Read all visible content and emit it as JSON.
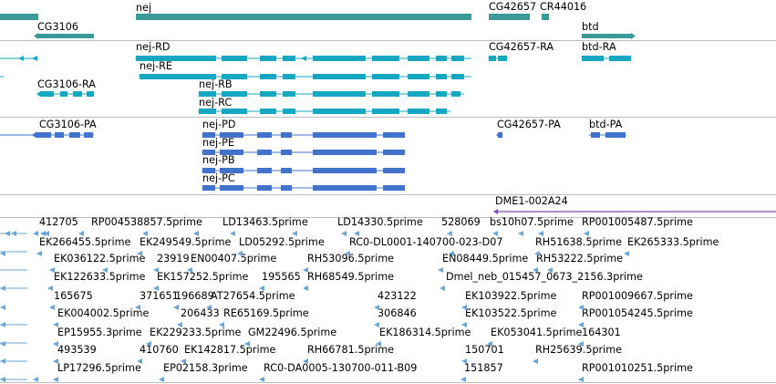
{
  "colors": {
    "gene": "#3a9999",
    "mrna": "#16a8c3",
    "cds": "#4273cc",
    "est": "#6aa5d6",
    "repeat": "#7a4cb0",
    "separator": "#bdbdbd"
  },
  "tracks": {
    "genes": {
      "labels": [
        "nej",
        "CG3106",
        "CG42657",
        "CR44016",
        "btd"
      ]
    },
    "transcripts": {
      "labels": [
        "nej-RD",
        "nej-RE",
        "nej-RB",
        "nej-RC",
        "CG3106-RA",
        "CG42657-RA",
        "btd-RA"
      ]
    },
    "cds": {
      "labels": [
        "CG3106-PA",
        "nej-PD",
        "nej-PE",
        "nej-PB",
        "nej-PC",
        "CG42657-PA",
        "btd-PA"
      ]
    },
    "repeats": {
      "labels": [
        "DME1-002A24"
      ]
    },
    "ests": {
      "labels": [
        "412705",
        "RP004538857.5prime",
        "LD13463.5prime",
        "LD14330.5prime",
        "528069",
        "bs10h07.5prime",
        "RP001005487.5prime",
        "EK266455.5prime",
        "EK249549.5prime",
        "LD05292.5prime",
        "RC0-DL0001-140700-023-D07",
        "RH51638.5prime",
        "EK265333.5prime",
        "EK036122.5prime",
        "23919",
        "EN00407.5prime",
        "RH53096.5prime",
        "EN08449.5prime",
        "RH53222.5prime",
        "EK122633.5prime",
        "EK157252.5prime",
        "195565",
        "RH68549.5prime",
        "Dmel_neb_015457_0673_2156.3prime",
        "165675",
        "371651",
        "196689",
        "AT27654.5prime",
        "423122",
        "EK103922.5prime",
        "RP001009667.5prime",
        "EK004002.5prime",
        "206433",
        "RE65169.5prime",
        "306846",
        "EK103522.5prime",
        "RP001054245.5prime",
        "EP15955.3prime",
        "EK229233.5prime",
        "GM22496.5prime",
        "EK186314.5prime",
        "EK053041.5prime",
        "164301",
        "493539",
        "410760",
        "EK142817.5prime",
        "RH66781.5prime",
        "150701",
        "RH25639.5prime",
        "LP17296.5prime",
        "EP02158.3prime",
        "RC0-DA0005-130700-011-B09",
        "151857",
        "RP001010251.5prime"
      ]
    }
  }
}
